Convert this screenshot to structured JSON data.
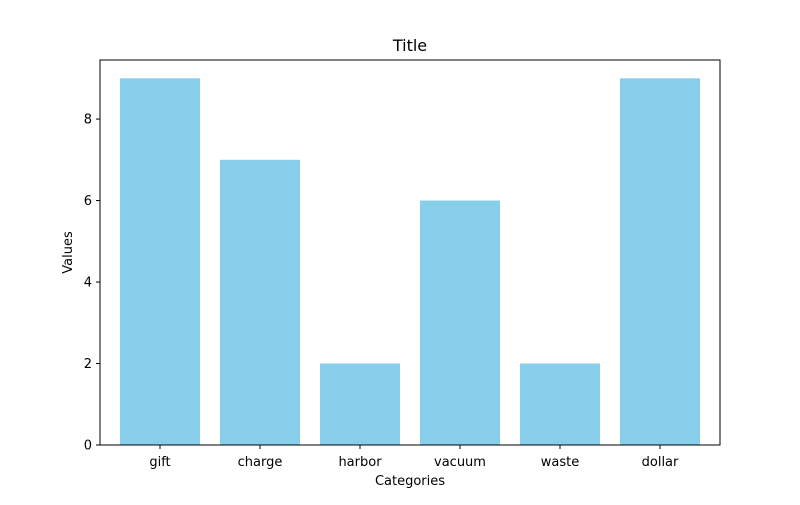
{
  "chart_data": {
    "type": "bar",
    "title": "Title",
    "xlabel": "Categories",
    "ylabel": "Values",
    "categories": [
      "gift",
      "charge",
      "harbor",
      "vacuum",
      "waste",
      "dollar"
    ],
    "values": [
      9,
      7,
      2,
      6,
      2,
      9
    ],
    "ylim": [
      0,
      9.45
    ],
    "yticks": [
      0,
      2,
      4,
      6,
      8
    ],
    "bar_color": "#87CEEB",
    "grid": false,
    "legend": false
  }
}
